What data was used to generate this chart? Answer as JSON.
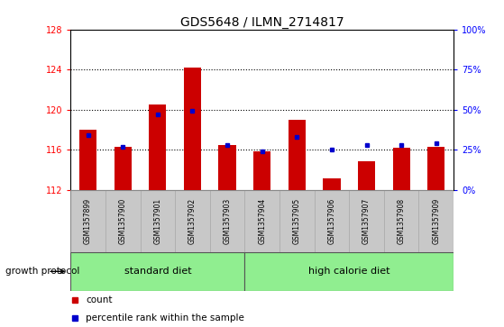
{
  "title": "GDS5648 / ILMN_2714817",
  "samples": [
    "GSM1357899",
    "GSM1357900",
    "GSM1357901",
    "GSM1357902",
    "GSM1357903",
    "GSM1357904",
    "GSM1357905",
    "GSM1357906",
    "GSM1357907",
    "GSM1357908",
    "GSM1357909"
  ],
  "counts": [
    118.0,
    116.3,
    120.5,
    124.2,
    116.5,
    115.8,
    119.0,
    113.1,
    114.8,
    116.2,
    116.3
  ],
  "percentiles": [
    34,
    27,
    47,
    49,
    28,
    24,
    33,
    25,
    28,
    28,
    29
  ],
  "y_min": 112,
  "y_max": 128,
  "y_ticks": [
    112,
    116,
    120,
    124,
    128
  ],
  "right_y_ticks": [
    0,
    25,
    50,
    75,
    100
  ],
  "right_y_labels": [
    "0%",
    "25%",
    "50%",
    "75%",
    "100%"
  ],
  "bar_color": "#cc0000",
  "dot_color": "#0000cc",
  "bg_color": "#ffffff",
  "standard_diet_count": 5,
  "group_labels": [
    "standard diet",
    "high calorie diet"
  ],
  "group_color": "#90ee90",
  "tick_label_bg": "#c8c8c8",
  "tick_label_border": "#aaaaaa",
  "xlabel_row": "growth protocol",
  "legend_count_label": "count",
  "legend_pct_label": "percentile rank within the sample",
  "bar_width": 0.5
}
